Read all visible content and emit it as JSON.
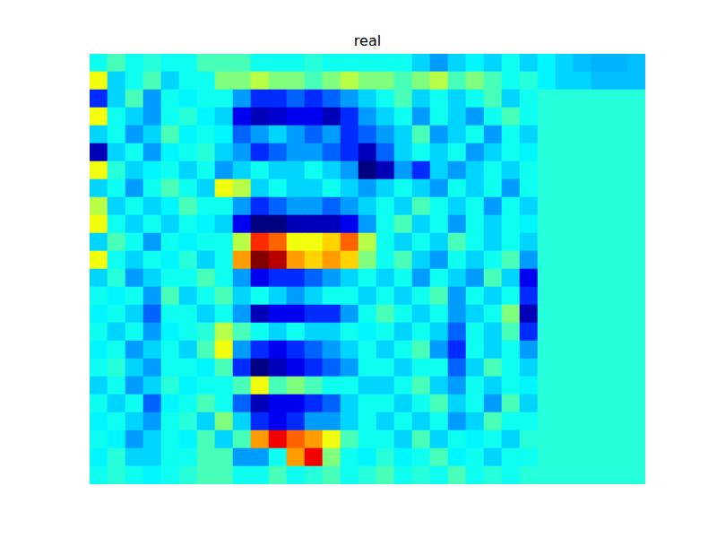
{
  "chart_data": {
    "type": "heatmap",
    "title": "real",
    "tick_labels": false,
    "cells": [
      [
        0.4,
        0.45,
        0.4,
        0.42,
        0.4,
        0.4,
        0.45,
        0.45,
        0.45,
        0.4,
        0.4,
        0.4,
        0.42,
        0.4,
        0.4,
        0.4,
        0.4,
        0.4,
        0.35,
        0.3,
        0.35,
        0.38,
        0.35,
        0.4,
        0.35,
        0.38,
        0.35,
        0.33,
        0.32,
        0.32,
        0.33
      ],
      [
        0.6,
        0.35,
        0.4,
        0.45,
        0.35,
        0.4,
        0.4,
        0.5,
        0.5,
        0.55,
        0.5,
        0.5,
        0.45,
        0.5,
        0.55,
        0.5,
        0.5,
        0.45,
        0.5,
        0.55,
        0.45,
        0.5,
        0.45,
        0.4,
        0.42,
        0.38,
        0.35,
        0.35,
        0.33,
        0.33,
        0.33
      ],
      [
        0.2,
        0.35,
        0.45,
        0.3,
        0.4,
        0.38,
        0.4,
        0.4,
        0.3,
        0.2,
        0.2,
        0.25,
        0.2,
        0.25,
        0.3,
        0.35,
        0.4,
        0.45,
        0.35,
        0.4,
        0.35,
        0.4,
        0.45,
        0.35,
        0.4,
        0.42,
        0.42,
        0.42,
        0.42,
        0.42,
        0.42
      ],
      [
        0.6,
        0.4,
        0.35,
        0.3,
        0.4,
        0.42,
        0.38,
        0.35,
        0.15,
        0.1,
        0.12,
        0.15,
        0.15,
        0.1,
        0.2,
        0.3,
        0.35,
        0.4,
        0.3,
        0.4,
        0.35,
        0.3,
        0.4,
        0.45,
        0.4,
        0.42,
        0.42,
        0.42,
        0.42,
        0.42,
        0.42
      ],
      [
        0.35,
        0.4,
        0.3,
        0.35,
        0.45,
        0.38,
        0.4,
        0.38,
        0.25,
        0.3,
        0.35,
        0.3,
        0.25,
        0.3,
        0.2,
        0.25,
        0.3,
        0.35,
        0.45,
        0.3,
        0.35,
        0.4,
        0.3,
        0.4,
        0.35,
        0.42,
        0.42,
        0.42,
        0.42,
        0.42,
        0.42
      ],
      [
        0.1,
        0.35,
        0.4,
        0.3,
        0.38,
        0.4,
        0.42,
        0.35,
        0.3,
        0.2,
        0.25,
        0.3,
        0.3,
        0.25,
        0.2,
        0.1,
        0.25,
        0.35,
        0.4,
        0.35,
        0.4,
        0.3,
        0.35,
        0.4,
        0.38,
        0.42,
        0.42,
        0.42,
        0.42,
        0.42,
        0.42
      ],
      [
        0.6,
        0.42,
        0.35,
        0.38,
        0.4,
        0.35,
        0.4,
        0.3,
        0.35,
        0.4,
        0.35,
        0.35,
        0.4,
        0.35,
        0.3,
        0.05,
        0.1,
        0.3,
        0.2,
        0.35,
        0.3,
        0.35,
        0.4,
        0.35,
        0.4,
        0.42,
        0.42,
        0.42,
        0.42,
        0.42,
        0.42
      ],
      [
        0.35,
        0.4,
        0.3,
        0.4,
        0.45,
        0.4,
        0.35,
        0.6,
        0.55,
        0.35,
        0.4,
        0.35,
        0.35,
        0.4,
        0.35,
        0.3,
        0.35,
        0.4,
        0.35,
        0.3,
        0.4,
        0.35,
        0.4,
        0.3,
        0.4,
        0.42,
        0.42,
        0.42,
        0.42,
        0.42,
        0.42
      ],
      [
        0.55,
        0.35,
        0.4,
        0.35,
        0.38,
        0.45,
        0.4,
        0.4,
        0.3,
        0.2,
        0.25,
        0.3,
        0.3,
        0.25,
        0.3,
        0.35,
        0.4,
        0.35,
        0.45,
        0.4,
        0.35,
        0.4,
        0.3,
        0.4,
        0.35,
        0.42,
        0.42,
        0.42,
        0.42,
        0.42,
        0.42
      ],
      [
        0.6,
        0.4,
        0.35,
        0.4,
        0.35,
        0.4,
        0.38,
        0.35,
        0.15,
        0.05,
        0.05,
        0.1,
        0.1,
        0.1,
        0.15,
        0.3,
        0.4,
        0.45,
        0.35,
        0.4,
        0.3,
        0.4,
        0.35,
        0.4,
        0.38,
        0.42,
        0.42,
        0.42,
        0.42,
        0.42,
        0.42
      ],
      [
        0.35,
        0.45,
        0.4,
        0.3,
        0.4,
        0.38,
        0.4,
        0.4,
        0.55,
        0.8,
        0.75,
        0.6,
        0.6,
        0.65,
        0.75,
        0.55,
        0.4,
        0.35,
        0.4,
        0.35,
        0.45,
        0.4,
        0.35,
        0.4,
        0.35,
        0.42,
        0.42,
        0.42,
        0.42,
        0.42,
        0.42
      ],
      [
        0.6,
        0.4,
        0.35,
        0.4,
        0.38,
        0.42,
        0.35,
        0.4,
        0.7,
        0.95,
        0.9,
        0.7,
        0.65,
        0.7,
        0.65,
        0.5,
        0.4,
        0.45,
        0.35,
        0.3,
        0.4,
        0.35,
        0.4,
        0.45,
        0.3,
        0.42,
        0.42,
        0.42,
        0.42,
        0.42,
        0.42
      ],
      [
        0.35,
        0.42,
        0.3,
        0.35,
        0.4,
        0.4,
        0.45,
        0.4,
        0.3,
        0.15,
        0.2,
        0.2,
        0.25,
        0.3,
        0.35,
        0.4,
        0.35,
        0.4,
        0.3,
        0.4,
        0.35,
        0.3,
        0.45,
        0.35,
        0.15,
        0.42,
        0.42,
        0.42,
        0.42,
        0.42,
        0.42
      ],
      [
        0.4,
        0.38,
        0.4,
        0.3,
        0.45,
        0.35,
        0.4,
        0.45,
        0.35,
        0.4,
        0.35,
        0.3,
        0.35,
        0.4,
        0.4,
        0.35,
        0.4,
        0.35,
        0.4,
        0.45,
        0.3,
        0.4,
        0.35,
        0.4,
        0.2,
        0.42,
        0.42,
        0.42,
        0.42,
        0.42,
        0.42
      ],
      [
        0.38,
        0.4,
        0.35,
        0.25,
        0.4,
        0.4,
        0.35,
        0.4,
        0.3,
        0.1,
        0.15,
        0.15,
        0.2,
        0.2,
        0.3,
        0.4,
        0.45,
        0.4,
        0.35,
        0.4,
        0.3,
        0.35,
        0.4,
        0.5,
        0.1,
        0.42,
        0.42,
        0.42,
        0.42,
        0.42,
        0.42
      ],
      [
        0.4,
        0.35,
        0.4,
        0.3,
        0.38,
        0.4,
        0.42,
        0.55,
        0.45,
        0.4,
        0.35,
        0.4,
        0.35,
        0.35,
        0.4,
        0.38,
        0.4,
        0.35,
        0.4,
        0.35,
        0.25,
        0.4,
        0.35,
        0.45,
        0.2,
        0.42,
        0.42,
        0.42,
        0.42,
        0.42,
        0.42
      ],
      [
        0.38,
        0.4,
        0.3,
        0.35,
        0.4,
        0.35,
        0.45,
        0.6,
        0.3,
        0.2,
        0.15,
        0.2,
        0.25,
        0.3,
        0.35,
        0.4,
        0.35,
        0.4,
        0.45,
        0.3,
        0.2,
        0.4,
        0.35,
        0.4,
        0.3,
        0.42,
        0.42,
        0.42,
        0.42,
        0.42,
        0.42
      ],
      [
        0.4,
        0.42,
        0.35,
        0.3,
        0.4,
        0.4,
        0.38,
        0.45,
        0.2,
        0.05,
        0.1,
        0.15,
        0.2,
        0.25,
        0.3,
        0.4,
        0.4,
        0.35,
        0.4,
        0.4,
        0.25,
        0.35,
        0.45,
        0.4,
        0.35,
        0.42,
        0.42,
        0.42,
        0.42,
        0.42,
        0.42
      ],
      [
        0.35,
        0.4,
        0.3,
        0.35,
        0.42,
        0.38,
        0.4,
        0.4,
        0.45,
        0.6,
        0.45,
        0.5,
        0.45,
        0.4,
        0.4,
        0.35,
        0.35,
        0.4,
        0.45,
        0.35,
        0.3,
        0.4,
        0.35,
        0.4,
        0.38,
        0.42,
        0.42,
        0.42,
        0.42,
        0.42,
        0.42
      ],
      [
        0.4,
        0.35,
        0.4,
        0.25,
        0.38,
        0.4,
        0.45,
        0.4,
        0.25,
        0.1,
        0.15,
        0.15,
        0.2,
        0.25,
        0.35,
        0.4,
        0.4,
        0.35,
        0.4,
        0.45,
        0.35,
        0.4,
        0.3,
        0.45,
        0.35,
        0.42,
        0.42,
        0.42,
        0.42,
        0.42,
        0.42
      ],
      [
        0.38,
        0.4,
        0.35,
        0.3,
        0.4,
        0.42,
        0.35,
        0.5,
        0.35,
        0.2,
        0.15,
        0.2,
        0.3,
        0.3,
        0.35,
        0.4,
        0.35,
        0.4,
        0.35,
        0.4,
        0.3,
        0.35,
        0.45,
        0.4,
        0.4,
        0.42,
        0.42,
        0.42,
        0.42,
        0.42,
        0.42
      ],
      [
        0.4,
        0.38,
        0.3,
        0.35,
        0.4,
        0.38,
        0.45,
        0.35,
        0.45,
        0.7,
        0.85,
        0.75,
        0.7,
        0.6,
        0.45,
        0.4,
        0.4,
        0.35,
        0.45,
        0.35,
        0.4,
        0.38,
        0.4,
        0.35,
        0.42,
        0.42,
        0.42,
        0.42,
        0.42,
        0.42,
        0.42
      ],
      [
        0.38,
        0.42,
        0.35,
        0.35,
        0.4,
        0.4,
        0.45,
        0.45,
        0.3,
        0.3,
        0.4,
        0.7,
        0.85,
        0.5,
        0.4,
        0.38,
        0.42,
        0.38,
        0.4,
        0.45,
        0.38,
        0.4,
        0.35,
        0.4,
        0.4,
        0.42,
        0.42,
        0.42,
        0.42,
        0.42,
        0.42
      ],
      [
        0.4,
        0.42,
        0.4,
        0.38,
        0.4,
        0.42,
        0.45,
        0.45,
        0.4,
        0.4,
        0.45,
        0.4,
        0.42,
        0.45,
        0.4,
        0.42,
        0.45,
        0.4,
        0.42,
        0.4,
        0.45,
        0.4,
        0.42,
        0.4,
        0.42,
        0.42,
        0.42,
        0.42,
        0.42,
        0.42,
        0.42
      ]
    ]
  }
}
